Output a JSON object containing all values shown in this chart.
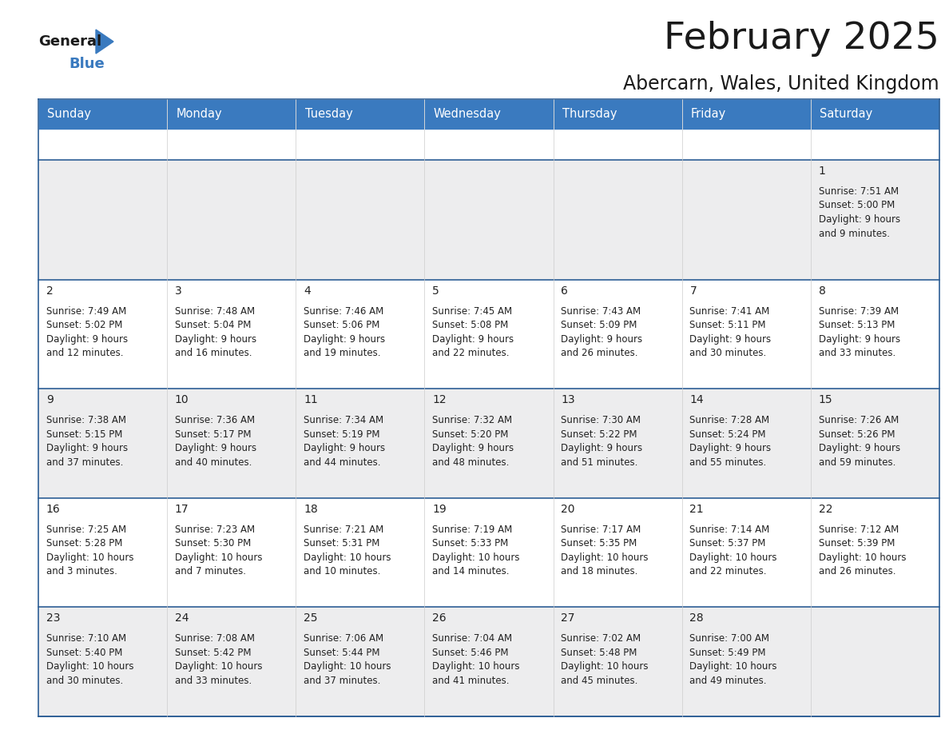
{
  "title": "February 2025",
  "subtitle": "Abercarn, Wales, United Kingdom",
  "header_color": "#3a7abf",
  "header_text_color": "#ffffff",
  "row1_bg": "#ededee",
  "row_bg_even": "#ededee",
  "row_bg_odd": "#ffffff",
  "border_color": "#2e5f96",
  "text_color": "#222222",
  "days_of_week": [
    "Sunday",
    "Monday",
    "Tuesday",
    "Wednesday",
    "Thursday",
    "Friday",
    "Saturday"
  ],
  "calendar_data": [
    [
      null,
      null,
      null,
      null,
      null,
      null,
      {
        "day": 1,
        "sunrise": "7:51 AM",
        "sunset": "5:00 PM",
        "daylight_line1": "9 hours",
        "daylight_line2": "and 9 minutes."
      }
    ],
    [
      {
        "day": 2,
        "sunrise": "7:49 AM",
        "sunset": "5:02 PM",
        "daylight_line1": "9 hours",
        "daylight_line2": "and 12 minutes."
      },
      {
        "day": 3,
        "sunrise": "7:48 AM",
        "sunset": "5:04 PM",
        "daylight_line1": "9 hours",
        "daylight_line2": "and 16 minutes."
      },
      {
        "day": 4,
        "sunrise": "7:46 AM",
        "sunset": "5:06 PM",
        "daylight_line1": "9 hours",
        "daylight_line2": "and 19 minutes."
      },
      {
        "day": 5,
        "sunrise": "7:45 AM",
        "sunset": "5:08 PM",
        "daylight_line1": "9 hours",
        "daylight_line2": "and 22 minutes."
      },
      {
        "day": 6,
        "sunrise": "7:43 AM",
        "sunset": "5:09 PM",
        "daylight_line1": "9 hours",
        "daylight_line2": "and 26 minutes."
      },
      {
        "day": 7,
        "sunrise": "7:41 AM",
        "sunset": "5:11 PM",
        "daylight_line1": "9 hours",
        "daylight_line2": "and 30 minutes."
      },
      {
        "day": 8,
        "sunrise": "7:39 AM",
        "sunset": "5:13 PM",
        "daylight_line1": "9 hours",
        "daylight_line2": "and 33 minutes."
      }
    ],
    [
      {
        "day": 9,
        "sunrise": "7:38 AM",
        "sunset": "5:15 PM",
        "daylight_line1": "9 hours",
        "daylight_line2": "and 37 minutes."
      },
      {
        "day": 10,
        "sunrise": "7:36 AM",
        "sunset": "5:17 PM",
        "daylight_line1": "9 hours",
        "daylight_line2": "and 40 minutes."
      },
      {
        "day": 11,
        "sunrise": "7:34 AM",
        "sunset": "5:19 PM",
        "daylight_line1": "9 hours",
        "daylight_line2": "and 44 minutes."
      },
      {
        "day": 12,
        "sunrise": "7:32 AM",
        "sunset": "5:20 PM",
        "daylight_line1": "9 hours",
        "daylight_line2": "and 48 minutes."
      },
      {
        "day": 13,
        "sunrise": "7:30 AM",
        "sunset": "5:22 PM",
        "daylight_line1": "9 hours",
        "daylight_line2": "and 51 minutes."
      },
      {
        "day": 14,
        "sunrise": "7:28 AM",
        "sunset": "5:24 PM",
        "daylight_line1": "9 hours",
        "daylight_line2": "and 55 minutes."
      },
      {
        "day": 15,
        "sunrise": "7:26 AM",
        "sunset": "5:26 PM",
        "daylight_line1": "9 hours",
        "daylight_line2": "and 59 minutes."
      }
    ],
    [
      {
        "day": 16,
        "sunrise": "7:25 AM",
        "sunset": "5:28 PM",
        "daylight_line1": "10 hours",
        "daylight_line2": "and 3 minutes."
      },
      {
        "day": 17,
        "sunrise": "7:23 AM",
        "sunset": "5:30 PM",
        "daylight_line1": "10 hours",
        "daylight_line2": "and 7 minutes."
      },
      {
        "day": 18,
        "sunrise": "7:21 AM",
        "sunset": "5:31 PM",
        "daylight_line1": "10 hours",
        "daylight_line2": "and 10 minutes."
      },
      {
        "day": 19,
        "sunrise": "7:19 AM",
        "sunset": "5:33 PM",
        "daylight_line1": "10 hours",
        "daylight_line2": "and 14 minutes."
      },
      {
        "day": 20,
        "sunrise": "7:17 AM",
        "sunset": "5:35 PM",
        "daylight_line1": "10 hours",
        "daylight_line2": "and 18 minutes."
      },
      {
        "day": 21,
        "sunrise": "7:14 AM",
        "sunset": "5:37 PM",
        "daylight_line1": "10 hours",
        "daylight_line2": "and 22 minutes."
      },
      {
        "day": 22,
        "sunrise": "7:12 AM",
        "sunset": "5:39 PM",
        "daylight_line1": "10 hours",
        "daylight_line2": "and 26 minutes."
      }
    ],
    [
      {
        "day": 23,
        "sunrise": "7:10 AM",
        "sunset": "5:40 PM",
        "daylight_line1": "10 hours",
        "daylight_line2": "and 30 minutes."
      },
      {
        "day": 24,
        "sunrise": "7:08 AM",
        "sunset": "5:42 PM",
        "daylight_line1": "10 hours",
        "daylight_line2": "and 33 minutes."
      },
      {
        "day": 25,
        "sunrise": "7:06 AM",
        "sunset": "5:44 PM",
        "daylight_line1": "10 hours",
        "daylight_line2": "and 37 minutes."
      },
      {
        "day": 26,
        "sunrise": "7:04 AM",
        "sunset": "5:46 PM",
        "daylight_line1": "10 hours",
        "daylight_line2": "and 41 minutes."
      },
      {
        "day": 27,
        "sunrise": "7:02 AM",
        "sunset": "5:48 PM",
        "daylight_line1": "10 hours",
        "daylight_line2": "and 45 minutes."
      },
      {
        "day": 28,
        "sunrise": "7:00 AM",
        "sunset": "5:49 PM",
        "daylight_line1": "10 hours",
        "daylight_line2": "and 49 minutes."
      },
      null
    ]
  ],
  "fig_width": 11.88,
  "fig_height": 9.18,
  "title_fontsize": 34,
  "subtitle_fontsize": 17,
  "header_fontsize": 10.5,
  "day_num_fontsize": 10,
  "cell_text_fontsize": 8.5
}
